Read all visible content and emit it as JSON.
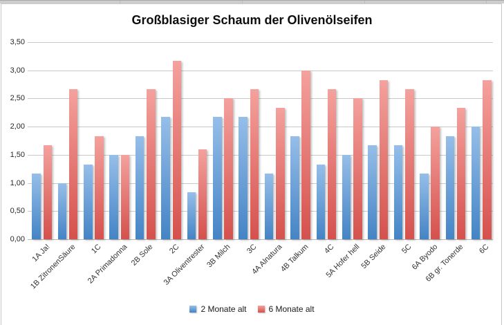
{
  "chart_data": {
    "type": "bar",
    "title": "Großblasiger Schaum der Olivenölseifen",
    "categories": [
      "1A Ja!",
      "1B ZitronenSäure",
      "1C",
      "2A Primadonna",
      "2B Sole",
      "2C",
      "3A Oliventrester",
      "3B Milch",
      "3C",
      "4A Alnatura",
      "4B Talkum",
      "4C",
      "5A Hofer hell",
      "5B Seide",
      "5C",
      "6A Byodo",
      "6B gr. Tonerde",
      "6C"
    ],
    "series": [
      {
        "name": "2 Monate alt",
        "color_top": "#96BEE9",
        "color_bottom": "#4484C5",
        "values": [
          1.17,
          1.0,
          1.33,
          1.5,
          1.83,
          2.17,
          0.83,
          2.17,
          2.17,
          1.17,
          1.83,
          1.33,
          1.5,
          1.67,
          1.67,
          1.17,
          1.83,
          2.0
        ]
      },
      {
        "name": "6 Monate alt",
        "color_top": "#F4A19D",
        "color_bottom": "#D5514D",
        "values": [
          1.67,
          2.67,
          1.83,
          1.5,
          2.67,
          3.17,
          1.6,
          2.5,
          2.67,
          2.33,
          3.0,
          2.67,
          2.5,
          2.83,
          2.67,
          2.0,
          2.33,
          2.83
        ]
      }
    ],
    "y_ticks": [
      "3,50",
      "3,00",
      "2,50",
      "2,00",
      "1,50",
      "1,00",
      "0,50",
      "0,00"
    ],
    "ylim": [
      0,
      3.5
    ],
    "y_step": 0.5,
    "grid": true,
    "legend_position": "bottom"
  }
}
